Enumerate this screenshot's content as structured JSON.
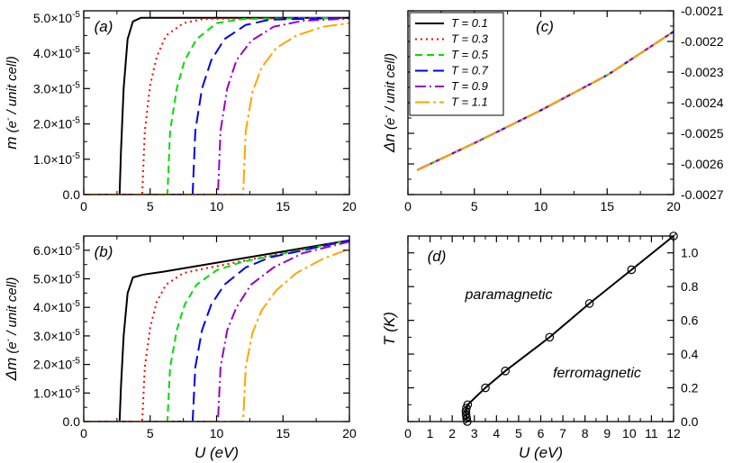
{
  "chart_data": [
    {
      "panel": "a",
      "panel_label": "(a)",
      "type": "line",
      "xlabel": "",
      "ylabel": {
        "main": "m",
        "paren_open": "(e",
        "sup": "-",
        "rest": " / unit cell)"
      },
      "xlim": [
        0,
        20
      ],
      "ylim": [
        0,
        5.2e-05
      ],
      "xticks": [
        "0",
        "5",
        "10",
        "15",
        "20"
      ],
      "yticks": [
        {
          "value": 0,
          "mant": "0.0",
          "exp": ""
        },
        {
          "value": 1e-05,
          "mant": "1.0×10",
          "exp": "-5"
        },
        {
          "value": 2e-05,
          "mant": "2.0×10",
          "exp": "-5"
        },
        {
          "value": 3e-05,
          "mant": "3.0×10",
          "exp": "-5"
        },
        {
          "value": 4e-05,
          "mant": "4.0×10",
          "exp": "-5"
        },
        {
          "value": 5e-05,
          "mant": "5.0×10",
          "exp": "-5"
        }
      ],
      "series": [
        {
          "name": "T = 0.1",
          "color": "#000000",
          "dash": "",
          "points": [
            [
              0,
              0
            ],
            [
              2.7,
              0
            ],
            [
              2.8,
              1.2e-05
            ],
            [
              3.0,
              3e-05
            ],
            [
              3.3,
              4.4e-05
            ],
            [
              3.7,
              4.9e-05
            ],
            [
              4.3,
              5e-05
            ],
            [
              20,
              5e-05
            ]
          ]
        },
        {
          "name": "T = 0.3",
          "color": "#ff0000",
          "dash": "2,4",
          "points": [
            [
              0,
              0
            ],
            [
              4.4,
              0
            ],
            [
              4.6,
              1.8e-05
            ],
            [
              5.0,
              3.1e-05
            ],
            [
              5.5,
              3.9e-05
            ],
            [
              6.2,
              4.5e-05
            ],
            [
              7.5,
              4.85e-05
            ],
            [
              9,
              4.97e-05
            ],
            [
              20,
              5e-05
            ]
          ]
        },
        {
          "name": "T = 0.5",
          "color": "#00dd00",
          "dash": "8,5",
          "points": [
            [
              0,
              0
            ],
            [
              6.3,
              0
            ],
            [
              6.5,
              1.8e-05
            ],
            [
              7.0,
              3e-05
            ],
            [
              7.6,
              3.8e-05
            ],
            [
              8.5,
              4.4e-05
            ],
            [
              10,
              4.85e-05
            ],
            [
              12,
              4.97e-05
            ],
            [
              20,
              5e-05
            ]
          ]
        },
        {
          "name": "T = 0.7",
          "color": "#0000ee",
          "dash": "14,6",
          "points": [
            [
              0,
              0
            ],
            [
              8.2,
              0
            ],
            [
              8.4,
              1.8e-05
            ],
            [
              8.9,
              3e-05
            ],
            [
              9.6,
              3.8e-05
            ],
            [
              10.6,
              4.4e-05
            ],
            [
              12.2,
              4.8e-05
            ],
            [
              14,
              4.95e-05
            ],
            [
              20,
              5e-05
            ]
          ]
        },
        {
          "name": "T = 0.9",
          "color": "#9900cc",
          "dash": "12,4,2,4",
          "points": [
            [
              0,
              0
            ],
            [
              10.1,
              0
            ],
            [
              10.3,
              1.8e-05
            ],
            [
              10.8,
              3e-05
            ],
            [
              11.5,
              3.8e-05
            ],
            [
              12.6,
              4.35e-05
            ],
            [
              14.3,
              4.75e-05
            ],
            [
              16.5,
              4.92e-05
            ],
            [
              20,
              4.98e-05
            ]
          ]
        },
        {
          "name": "T = 1.1",
          "color": "#ffa500",
          "dash": "16,4,3,4",
          "points": [
            [
              0,
              0
            ],
            [
              12.0,
              0
            ],
            [
              12.2,
              1.8e-05
            ],
            [
              12.7,
              2.9e-05
            ],
            [
              13.4,
              3.6e-05
            ],
            [
              14.5,
              4.15e-05
            ],
            [
              16.0,
              4.5e-05
            ],
            [
              18.0,
              4.75e-05
            ],
            [
              20,
              4.85e-05
            ]
          ]
        }
      ]
    },
    {
      "panel": "b",
      "panel_label": "(b)",
      "type": "line",
      "xlabel": "U (eV)",
      "ylabel": {
        "main": "Δm",
        "paren_open": "(e",
        "sup": "-",
        "rest": " / unit cell)"
      },
      "xlim": [
        0,
        20
      ],
      "ylim": [
        0,
        6.5e-05
      ],
      "xticks": [
        "0",
        "5",
        "10",
        "15",
        "20"
      ],
      "yticks": [
        {
          "value": 0,
          "mant": "0.0",
          "exp": ""
        },
        {
          "value": 1e-05,
          "mant": "1.0×10",
          "exp": "-5"
        },
        {
          "value": 2e-05,
          "mant": "2.0×10",
          "exp": "-5"
        },
        {
          "value": 3e-05,
          "mant": "3.0×10",
          "exp": "-5"
        },
        {
          "value": 4e-05,
          "mant": "4.0×10",
          "exp": "-5"
        },
        {
          "value": 5e-05,
          "mant": "5.0×10",
          "exp": "-5"
        },
        {
          "value": 6e-05,
          "mant": "6.0×10",
          "exp": "-5"
        }
      ],
      "series": [
        {
          "name": "T = 0.1",
          "color": "#000000",
          "dash": "",
          "points": [
            [
              0,
              0
            ],
            [
              2.7,
              0
            ],
            [
              2.8,
              1.2e-05
            ],
            [
              3.0,
              3e-05
            ],
            [
              3.3,
              4.5e-05
            ],
            [
              3.7,
              5.05e-05
            ],
            [
              4.5,
              5.15e-05
            ],
            [
              6,
              5.25e-05
            ],
            [
              20,
              6.35e-05
            ]
          ]
        },
        {
          "name": "T = 0.3",
          "color": "#ff0000",
          "dash": "2,4",
          "points": [
            [
              0,
              0
            ],
            [
              4.4,
              0
            ],
            [
              4.6,
              1.9e-05
            ],
            [
              5.0,
              3.3e-05
            ],
            [
              5.5,
              4.2e-05
            ],
            [
              6.2,
              4.8e-05
            ],
            [
              7.5,
              5.2e-05
            ],
            [
              9,
              5.35e-05
            ],
            [
              20,
              6.35e-05
            ]
          ]
        },
        {
          "name": "T = 0.5",
          "color": "#00dd00",
          "dash": "8,5",
          "points": [
            [
              0,
              0
            ],
            [
              6.3,
              0
            ],
            [
              6.5,
              1.9e-05
            ],
            [
              7.0,
              3.2e-05
            ],
            [
              7.6,
              4.1e-05
            ],
            [
              8.5,
              4.8e-05
            ],
            [
              10,
              5.3e-05
            ],
            [
              12,
              5.6e-05
            ],
            [
              20,
              6.35e-05
            ]
          ]
        },
        {
          "name": "T = 0.7",
          "color": "#0000ee",
          "dash": "14,6",
          "points": [
            [
              0,
              0
            ],
            [
              8.2,
              0
            ],
            [
              8.4,
              1.9e-05
            ],
            [
              8.9,
              3.2e-05
            ],
            [
              9.6,
              4.1e-05
            ],
            [
              10.6,
              4.8e-05
            ],
            [
              12.2,
              5.4e-05
            ],
            [
              14,
              5.75e-05
            ],
            [
              20,
              6.35e-05
            ]
          ]
        },
        {
          "name": "T = 0.9",
          "color": "#9900cc",
          "dash": "12,4,2,4",
          "points": [
            [
              0,
              0
            ],
            [
              10.1,
              0
            ],
            [
              10.3,
              1.9e-05
            ],
            [
              10.8,
              3.2e-05
            ],
            [
              11.5,
              4e-05
            ],
            [
              12.6,
              4.8e-05
            ],
            [
              14.3,
              5.4e-05
            ],
            [
              16.5,
              5.9e-05
            ],
            [
              20,
              6.3e-05
            ]
          ]
        },
        {
          "name": "T = 1.1",
          "color": "#ffa500",
          "dash": "16,4,3,4",
          "points": [
            [
              0,
              0
            ],
            [
              12.0,
              0
            ],
            [
              12.2,
              1.9e-05
            ],
            [
              12.7,
              3.1e-05
            ],
            [
              13.4,
              3.9e-05
            ],
            [
              14.5,
              4.6e-05
            ],
            [
              16.0,
              5.2e-05
            ],
            [
              18.0,
              5.7e-05
            ],
            [
              20,
              6.05e-05
            ]
          ]
        }
      ]
    },
    {
      "panel": "c",
      "panel_label": "(c)",
      "type": "line",
      "xlabel": "",
      "ylabel": {
        "main": "Δn",
        "paren_open": "(e",
        "sup": "-",
        "rest": " / unit cell)"
      },
      "xlim": [
        0,
        20
      ],
      "ylim": [
        -0.0027,
        -0.0021
      ],
      "xticks": [
        "0",
        "5",
        "10",
        "15",
        "20"
      ],
      "yticks": [
        {
          "value": -0.0027,
          "label": "-0.0027"
        },
        {
          "value": -0.0026,
          "label": "-0.0026"
        },
        {
          "value": -0.0025,
          "label": "-0.0025"
        },
        {
          "value": -0.0024,
          "label": "-0.0024"
        },
        {
          "value": -0.0023,
          "label": "-0.0023"
        },
        {
          "value": -0.0022,
          "label": "-0.0022"
        },
        {
          "value": -0.0021,
          "label": "-0.0021"
        }
      ],
      "legend": {
        "position": "top-left",
        "entries": [
          "T = 0.1",
          "T = 0.3",
          "T = 0.5",
          "T = 0.7",
          "T = 0.9",
          "T = 1.1"
        ]
      },
      "series": [
        {
          "name": "T = 0.1",
          "color": "#000000",
          "dash": "",
          "points": [
            [
              0.7,
              -0.00262
            ],
            [
              5,
              -0.002532
            ],
            [
              10,
              -0.002425
            ],
            [
              15,
              -0.00231
            ],
            [
              20,
              -0.002168
            ]
          ]
        },
        {
          "name": "T = 0.3",
          "color": "#ff0000",
          "dash": "2,4",
          "points": [
            [
              0.7,
              -0.00262
            ],
            [
              5,
              -0.002532
            ],
            [
              10,
              -0.002425
            ],
            [
              15,
              -0.00231
            ],
            [
              20,
              -0.002168
            ]
          ]
        },
        {
          "name": "T = 0.5",
          "color": "#00dd00",
          "dash": "8,5",
          "points": [
            [
              0.7,
              -0.00262
            ],
            [
              5,
              -0.002532
            ],
            [
              10,
              -0.002425
            ],
            [
              15,
              -0.00231
            ],
            [
              20,
              -0.002168
            ]
          ]
        },
        {
          "name": "T = 0.7",
          "color": "#0000ee",
          "dash": "14,6",
          "points": [
            [
              0.7,
              -0.00262
            ],
            [
              5,
              -0.002532
            ],
            [
              10,
              -0.002425
            ],
            [
              15,
              -0.00231
            ],
            [
              20,
              -0.002168
            ]
          ]
        },
        {
          "name": "T = 0.9",
          "color": "#9900cc",
          "dash": "12,4,2,4",
          "points": [
            [
              0.7,
              -0.00262
            ],
            [
              5,
              -0.002532
            ],
            [
              10,
              -0.002425
            ],
            [
              15,
              -0.00231
            ],
            [
              20,
              -0.002168
            ]
          ]
        },
        {
          "name": "T = 1.1",
          "color": "#ffa500",
          "dash": "16,4,3,4",
          "points": [
            [
              0.7,
              -0.00262
            ],
            [
              5,
              -0.002532
            ],
            [
              10,
              -0.002425
            ],
            [
              15,
              -0.00231
            ],
            [
              20,
              -0.002168
            ]
          ]
        }
      ]
    },
    {
      "panel": "d",
      "panel_label": "(d)",
      "type": "line",
      "xlabel": "U (eV)",
      "ylabel": "T (K)",
      "xlim": [
        0,
        12
      ],
      "ylim": [
        0,
        1.1
      ],
      "xticks": [
        "0",
        "1",
        "2",
        "3",
        "4",
        "5",
        "6",
        "7",
        "8",
        "9",
        "10",
        "11",
        "12"
      ],
      "yticks": [
        "0.0",
        "0.2",
        "0.4",
        "0.6",
        "0.8",
        "1.0"
      ],
      "annotations": {
        "upper": "paramagnetic",
        "lower": "ferromagnetic"
      },
      "series": [
        {
          "name": "",
          "color": "#000000",
          "points": [
            [
              2.68,
              0.0
            ],
            [
              2.65,
              0.02
            ],
            [
              2.63,
              0.04
            ],
            [
              2.62,
              0.06
            ],
            [
              2.64,
              0.08
            ],
            [
              2.7,
              0.1
            ],
            [
              3.5,
              0.2
            ],
            [
              4.4,
              0.3
            ],
            [
              6.4,
              0.5
            ],
            [
              8.2,
              0.7
            ],
            [
              10.1,
              0.9
            ],
            [
              12.0,
              1.1
            ]
          ]
        }
      ]
    }
  ]
}
